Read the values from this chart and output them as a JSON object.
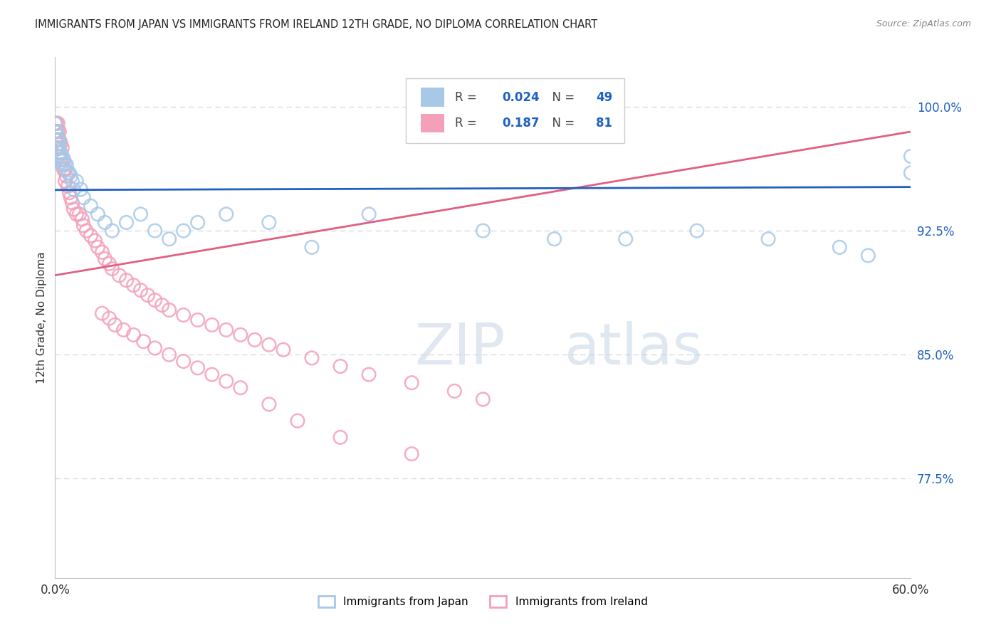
{
  "title": "IMMIGRANTS FROM JAPAN VS IMMIGRANTS FROM IRELAND 12TH GRADE, NO DIPLOMA CORRELATION CHART",
  "source": "Source: ZipAtlas.com",
  "ylabel": "12th Grade, No Diploma",
  "yticks": [
    0.775,
    0.85,
    0.925,
    1.0
  ],
  "ytick_labels": [
    "77.5%",
    "85.0%",
    "92.5%",
    "100.0%"
  ],
  "xlim": [
    0.0,
    0.6
  ],
  "ylim": [
    0.715,
    1.03
  ],
  "japan_R": 0.024,
  "japan_N": 49,
  "ireland_R": 0.187,
  "ireland_N": 81,
  "japan_color": "#a8c8e8",
  "ireland_color": "#f4a0b8",
  "japan_line_color": "#2060c0",
  "ireland_line_color": "#e06080",
  "japan_x": [
    0.0,
    0.0,
    0.0,
    0.001,
    0.001,
    0.001,
    0.002,
    0.002,
    0.002,
    0.003,
    0.003,
    0.004,
    0.004,
    0.005,
    0.005,
    0.006,
    0.007,
    0.008,
    0.009,
    0.01,
    0.011,
    0.012,
    0.013,
    0.015,
    0.018,
    0.02,
    0.025,
    0.03,
    0.035,
    0.04,
    0.05,
    0.06,
    0.07,
    0.08,
    0.09,
    0.1,
    0.12,
    0.15,
    0.18,
    0.22,
    0.3,
    0.35,
    0.4,
    0.45,
    0.5,
    0.55,
    0.57,
    0.6,
    0.6
  ],
  "japan_y": [
    0.975,
    0.985,
    0.99,
    0.975,
    0.98,
    0.985,
    0.975,
    0.97,
    0.98,
    0.975,
    0.98,
    0.972,
    0.968,
    0.97,
    0.965,
    0.968,
    0.965,
    0.965,
    0.96,
    0.96,
    0.958,
    0.955,
    0.95,
    0.955,
    0.95,
    0.945,
    0.94,
    0.935,
    0.93,
    0.925,
    0.93,
    0.935,
    0.925,
    0.92,
    0.925,
    0.93,
    0.935,
    0.93,
    0.915,
    0.935,
    0.925,
    0.92,
    0.92,
    0.925,
    0.92,
    0.915,
    0.91,
    0.97,
    0.96
  ],
  "ireland_x": [
    0.0,
    0.0,
    0.0,
    0.001,
    0.001,
    0.001,
    0.001,
    0.002,
    0.002,
    0.002,
    0.002,
    0.003,
    0.003,
    0.003,
    0.003,
    0.004,
    0.004,
    0.004,
    0.005,
    0.005,
    0.006,
    0.006,
    0.007,
    0.007,
    0.008,
    0.009,
    0.01,
    0.011,
    0.012,
    0.013,
    0.015,
    0.017,
    0.019,
    0.02,
    0.022,
    0.025,
    0.028,
    0.03,
    0.033,
    0.035,
    0.038,
    0.04,
    0.045,
    0.05,
    0.055,
    0.06,
    0.065,
    0.07,
    0.075,
    0.08,
    0.09,
    0.1,
    0.11,
    0.12,
    0.13,
    0.14,
    0.15,
    0.16,
    0.18,
    0.2,
    0.22,
    0.25,
    0.28,
    0.3,
    0.033,
    0.038,
    0.042,
    0.048,
    0.055,
    0.062,
    0.07,
    0.08,
    0.09,
    0.1,
    0.11,
    0.12,
    0.13,
    0.15,
    0.17,
    0.2,
    0.25
  ],
  "ireland_y": [
    0.99,
    0.985,
    0.98,
    0.99,
    0.985,
    0.98,
    0.975,
    0.99,
    0.985,
    0.98,
    0.975,
    0.985,
    0.98,
    0.975,
    0.97,
    0.978,
    0.972,
    0.968,
    0.975,
    0.965,
    0.968,
    0.962,
    0.962,
    0.955,
    0.958,
    0.952,
    0.948,
    0.945,
    0.942,
    0.938,
    0.935,
    0.935,
    0.932,
    0.928,
    0.925,
    0.922,
    0.919,
    0.915,
    0.912,
    0.908,
    0.905,
    0.902,
    0.898,
    0.895,
    0.892,
    0.889,
    0.886,
    0.883,
    0.88,
    0.877,
    0.874,
    0.871,
    0.868,
    0.865,
    0.862,
    0.859,
    0.856,
    0.853,
    0.848,
    0.843,
    0.838,
    0.833,
    0.828,
    0.823,
    0.875,
    0.872,
    0.868,
    0.865,
    0.862,
    0.858,
    0.854,
    0.85,
    0.846,
    0.842,
    0.838,
    0.834,
    0.83,
    0.82,
    0.81,
    0.8,
    0.79
  ],
  "legend_japan_label": "Immigrants from Japan",
  "legend_ireland_label": "Immigrants from Ireland",
  "watermark_zip": "ZIP",
  "watermark_atlas": "atlas",
  "background_color": "#ffffff",
  "grid_color": "#d0d8e0",
  "scatter_size": 180,
  "scatter_linewidth": 1.8
}
